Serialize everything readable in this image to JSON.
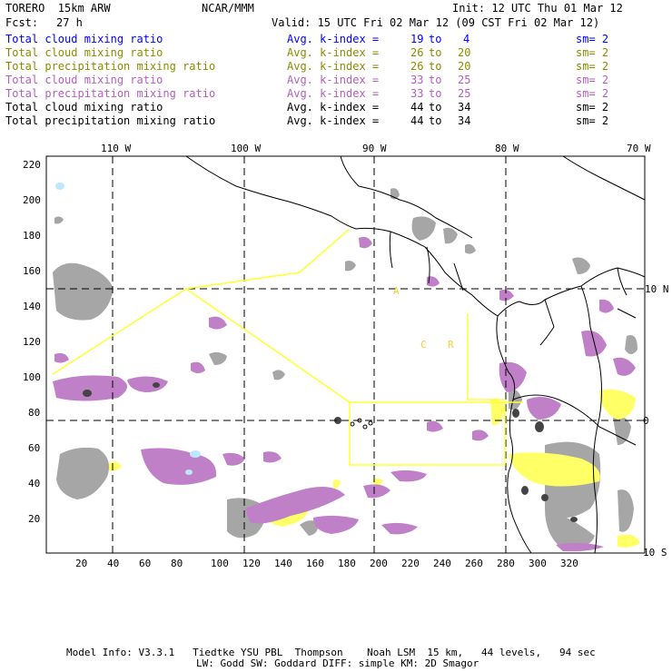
{
  "header": {
    "model": "TORERO  15km ARW",
    "org": "NCAR/MMM",
    "init": "Init: 12 UTC Thu 01 Mar 12",
    "fcst_label": "Fcst:",
    "fcst_value": "27 h",
    "valid": "Valid: 15 UTC Fri 02 Mar 12 (09 CST Fri 02 Mar 12)"
  },
  "legend_rows": [
    {
      "field": "Total cloud mixing ratio",
      "kidx": "Avg. k-index =",
      "a": "19",
      "to": "to",
      "b": "4",
      "sm": "sm= 2",
      "color": "#0000ff"
    },
    {
      "field": "Total cloud mixing ratio",
      "kidx": "Avg. k-index =",
      "a": "26",
      "to": "to",
      "b": "20",
      "sm": "sm= 2",
      "color": "#8b8b00"
    },
    {
      "field": "Total precipitation mixing ratio",
      "kidx": "Avg. k-index =",
      "a": "26",
      "to": "to",
      "b": "20",
      "sm": "sm= 2",
      "color": "#8b8b00"
    },
    {
      "field": "Total cloud mixing ratio",
      "kidx": "Avg. k-index =",
      "a": "33",
      "to": "to",
      "b": "25",
      "sm": "sm= 2",
      "color": "#b35fbf"
    },
    {
      "field": "Total precipitation mixing ratio",
      "kidx": "Avg. k-index =",
      "a": "33",
      "to": "to",
      "b": "25",
      "sm": "sm= 2",
      "color": "#b35fbf"
    },
    {
      "field": "Total cloud mixing ratio",
      "kidx": "Avg. k-index =",
      "a": "44",
      "to": "to",
      "b": "34",
      "sm": "sm= 2",
      "color": "#000000"
    },
    {
      "field": "Total precipitation mixing ratio",
      "kidx": "Avg. k-index =",
      "a": "44",
      "to": "to",
      "b": "34",
      "sm": "sm= 2",
      "color": "#000000"
    }
  ],
  "longitude_labels": [
    "110 W",
    "100 W",
    "90 W",
    "80 W",
    "70 W"
  ],
  "latitude_labels": [
    "10 N",
    "0",
    "10 S"
  ],
  "grid_x_ticks": [
    "20",
    "40",
    "60",
    "80",
    "100",
    "120",
    "140",
    "160",
    "180",
    "200",
    "220",
    "240",
    "260",
    "280",
    "300",
    "320"
  ],
  "grid_y_ticks": [
    "220",
    "200",
    "180",
    "160",
    "140",
    "120",
    "100",
    "80",
    "60",
    "40",
    "20"
  ],
  "map_labels": {
    "capital_a": "A",
    "capital_c": "C",
    "capital_r": "R"
  },
  "footer": {
    "line1": "Model Info: V3.3.1   Tiedtke YSU PBL  Thompson    Noah LSM  15 km,   44 levels,   94 sec",
    "line2": "LW: Godd SW: Goddard DIFF: simple KM: 2D Smagor"
  }
}
